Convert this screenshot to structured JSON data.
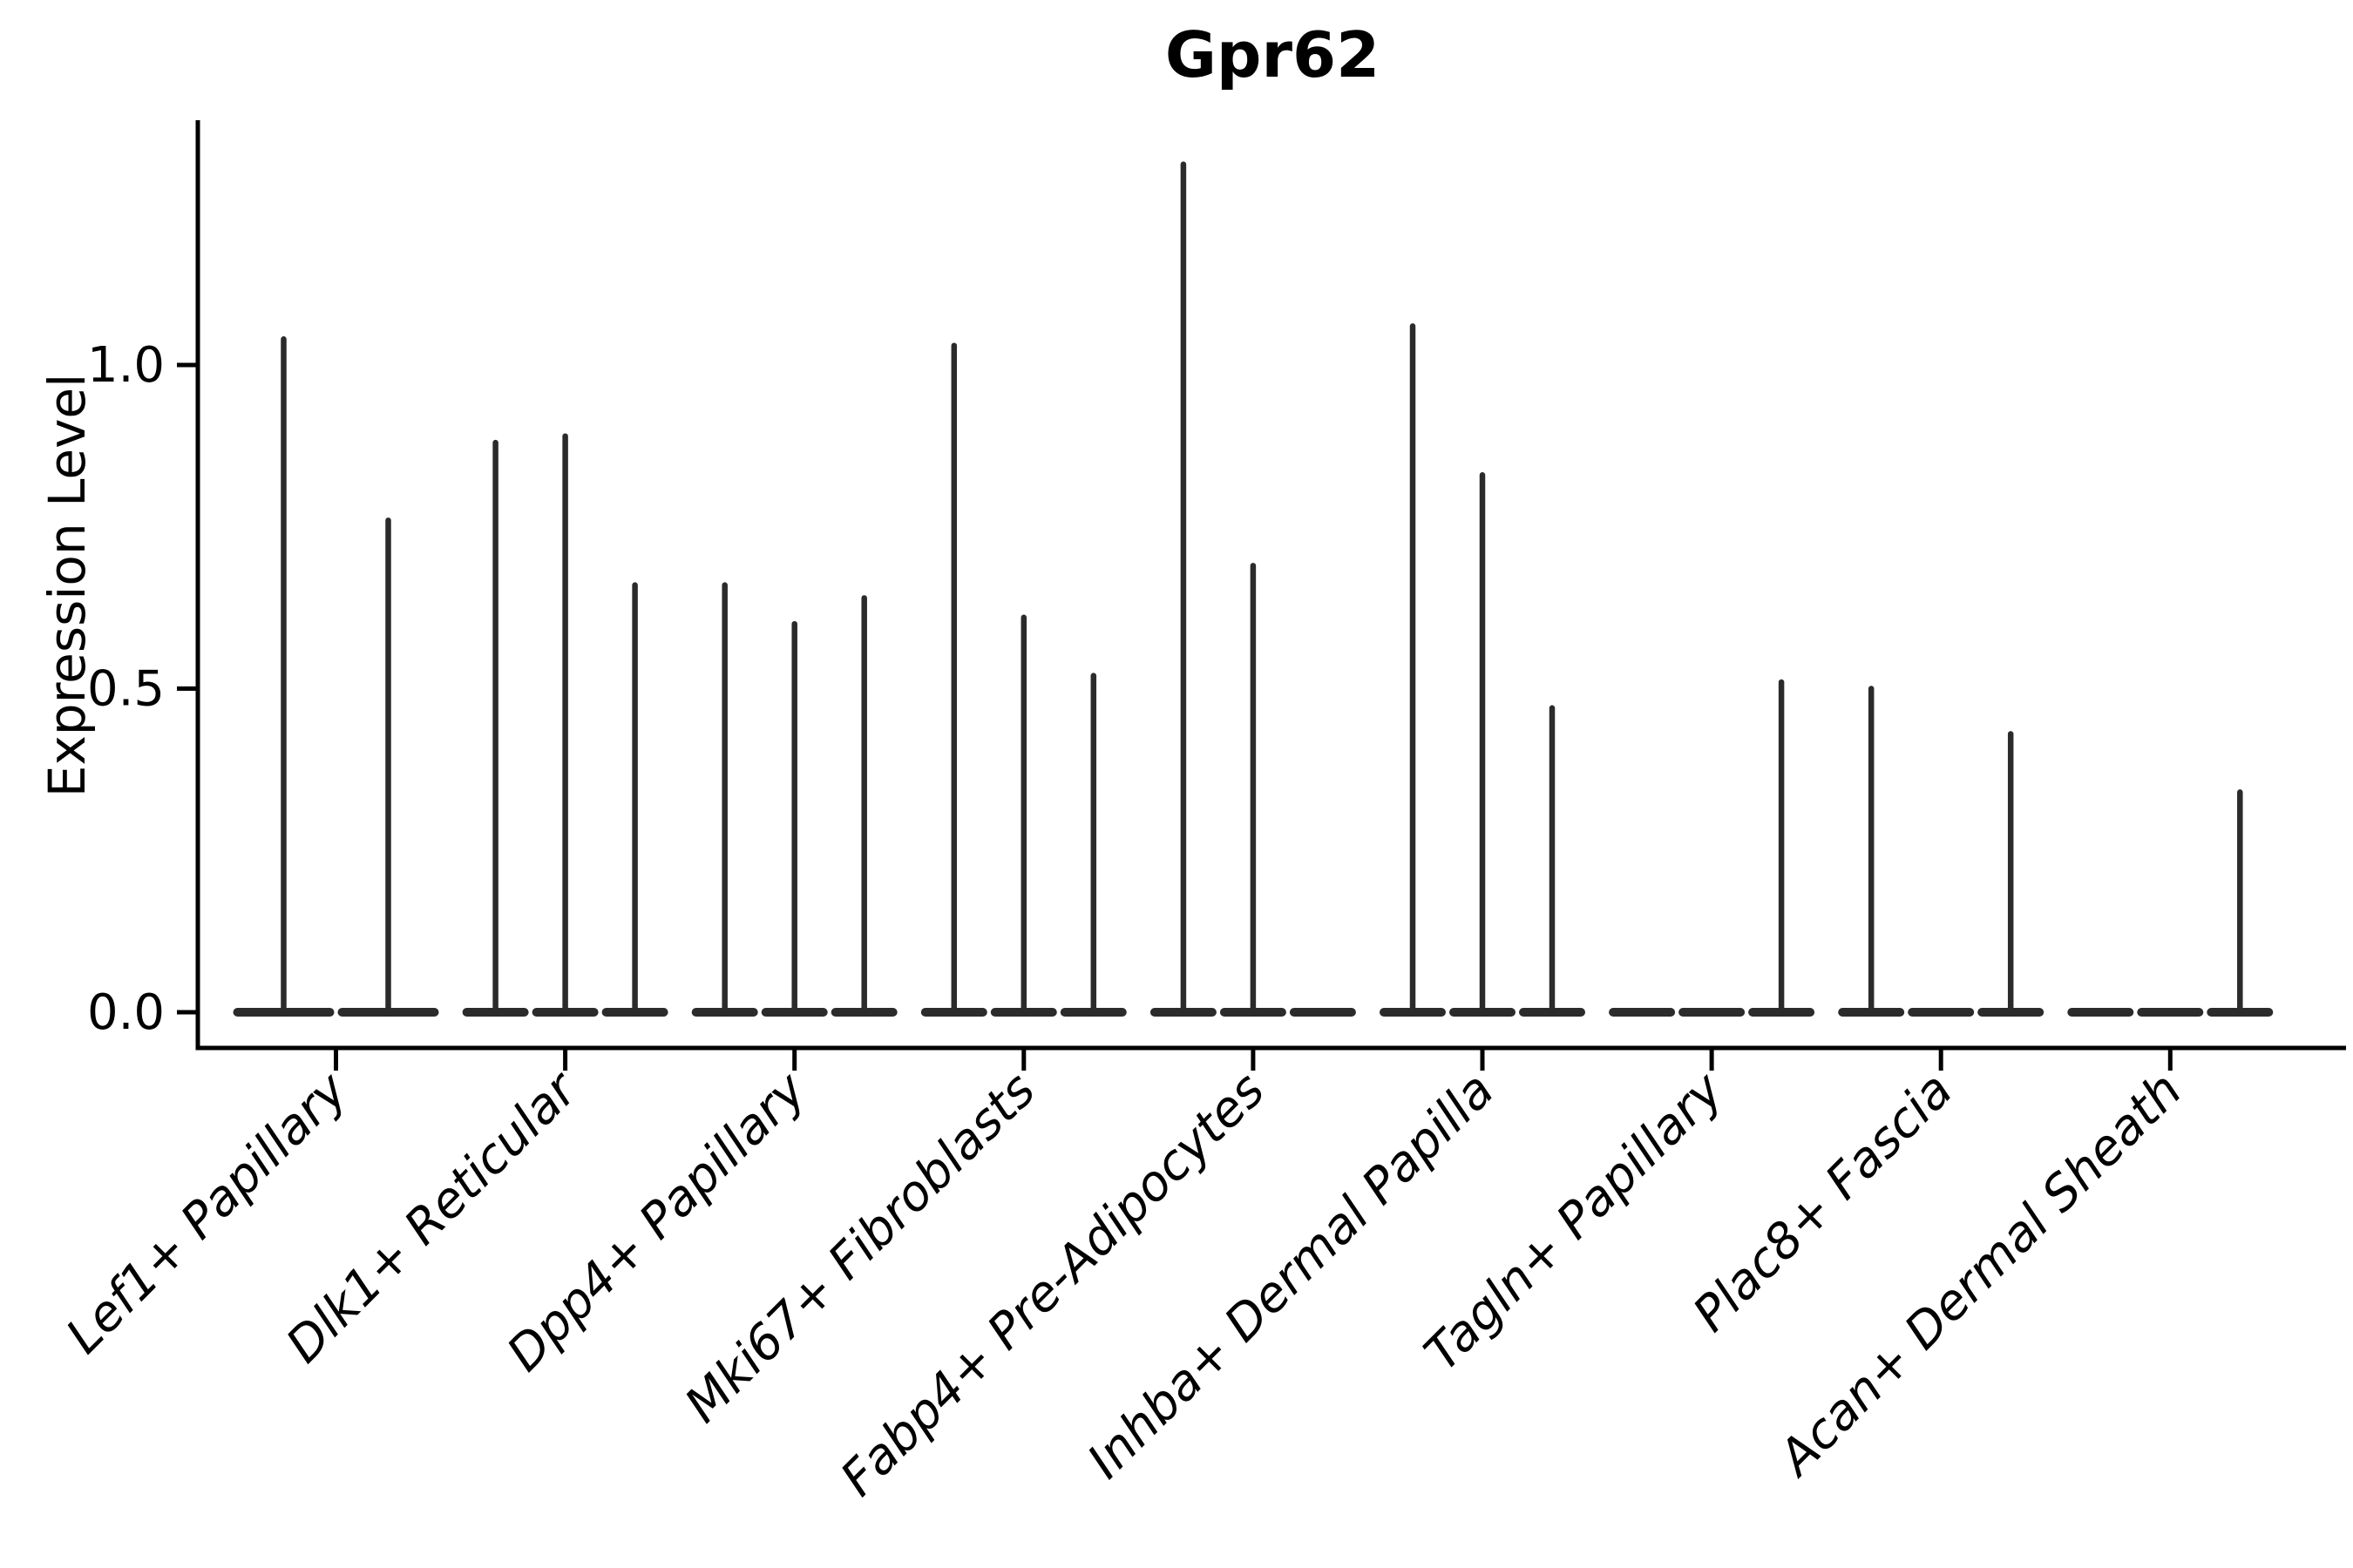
{
  "figure": {
    "title": "Gpr62",
    "y_axis": {
      "label": "Expression Level",
      "tick_labels": [
        "0.0",
        "0.5",
        "1.0"
      ]
    }
  },
  "chart_data": {
    "type": "violin",
    "title": "Gpr62",
    "ylabel": "Expression Level",
    "xlabel": "",
    "yticks": [
      0.0,
      0.5,
      1.0
    ],
    "ylim": [
      -0.06,
      1.38
    ],
    "grid": false,
    "legend_position": "none",
    "x_tick_rotation_deg": 45,
    "x_tick_font_style": "italic",
    "violin_shape": "needle (near-all density at 0 with thin spike to max)",
    "categories": [
      "Lef1+ Papillary",
      "Dlk1+ Reticular",
      "Dpp4+ Papillary",
      "Mki67+ Fibroblasts",
      "Fabp4+ Pre-Adipocytes",
      "Inhba+ Dermal Papilla",
      "Tagln+ Papillary",
      "Plac8+ Fascia",
      "Acan+ Dermal Sheath"
    ],
    "series": [
      {
        "category": "Lef1+ Papillary",
        "violin_max_expression": [
          1.04,
          0.76
        ]
      },
      {
        "category": "Dlk1+ Reticular",
        "violin_max_expression": [
          0.88,
          0.89,
          0.66
        ]
      },
      {
        "category": "Dpp4+ Papillary",
        "violin_max_expression": [
          0.66,
          0.6,
          0.64
        ]
      },
      {
        "category": "Mki67+ Fibroblasts",
        "violin_max_expression": [
          1.03,
          0.61,
          0.52
        ]
      },
      {
        "category": "Fabp4+ Pre-Adipocytes",
        "violin_max_expression": [
          1.31,
          0.69,
          0.0
        ]
      },
      {
        "category": "Inhba+ Dermal Papilla",
        "violin_max_expression": [
          1.06,
          0.83,
          0.47
        ]
      },
      {
        "category": "Tagln+ Papillary",
        "violin_max_expression": [
          0.0,
          0.0,
          0.51
        ]
      },
      {
        "category": "Plac8+ Fascia",
        "violin_max_expression": [
          0.5,
          0.0,
          0.43
        ]
      },
      {
        "category": "Acan+ Dermal Sheath",
        "violin_max_expression": [
          0.0,
          0.0,
          0.34
        ]
      }
    ],
    "colors": {
      "violin": "#2b2b2b",
      "axis": "#000000",
      "text": "#000000",
      "background": "#ffffff"
    }
  }
}
